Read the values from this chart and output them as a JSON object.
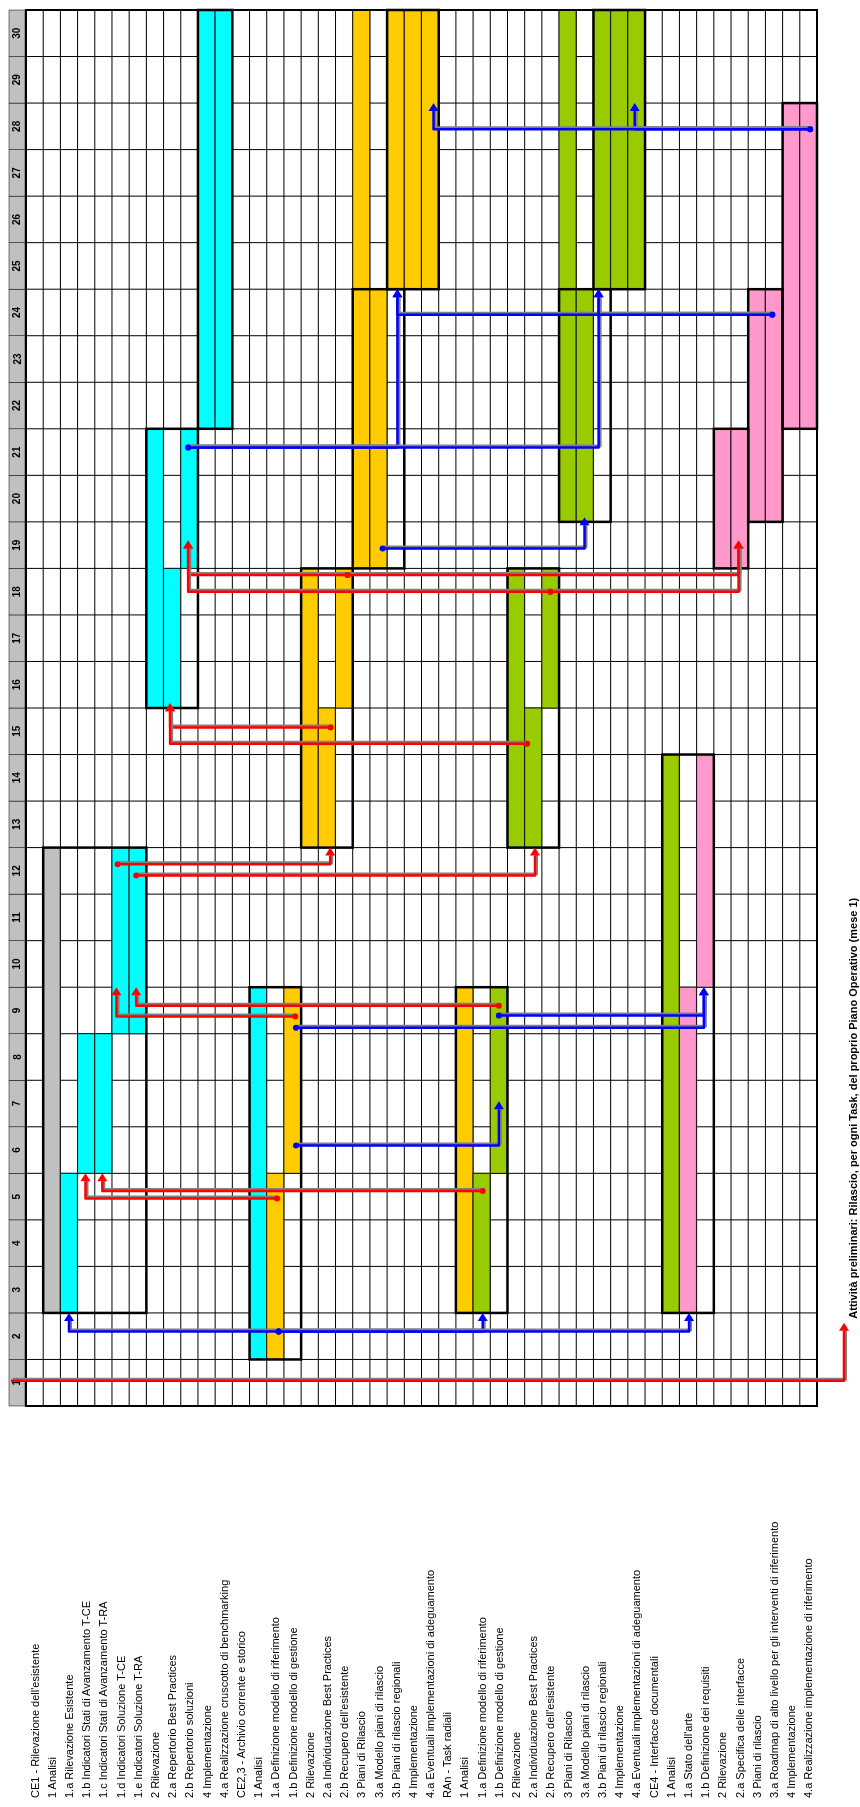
{
  "chart_data": {
    "type": "bar",
    "categories": [
      "CE1 - Rilevazione dell'esistente",
      "1 Analisi",
      "1.a Rilevazione Esistente",
      "1.b Indicatori Stati di Avanzamento T-CE",
      "1.c Indicatori Stati di Avanzamento T-RA",
      "1.d Indicatori Soluzione T-CE",
      "1.e Indicatori Soluzione T-RA",
      "2 Rilevazione",
      "2.a Repertorio Best Practices",
      "2.b Repertorio soluzioni",
      "4 Implementazione",
      "4.a Realizzazione cruscotto di benchmarking",
      "CE2,3 - Archivio corrente e storico",
      "1 Analisi",
      "1.a Definizione modello di riferimento",
      "1.b Definizione modello di gestione",
      "2 Rilevazione",
      "2.a Individuazione Best Practices",
      "2.b Recupero dell'esistente",
      "3 Piani di Rilascio",
      "3.a Modello piani di rilascio",
      "3.b Piani di rilascio regionali",
      "4 Implementazione",
      "4.a Eventuali implementazioni di adeguamento",
      "RAn - Task radiali",
      "1 Analisi",
      "1.a Definizione modello di riferimento",
      "1.b Definizione modello di gestione",
      "2 Rilevazione",
      "2.a Individuazione Best Practices",
      "2.b Recupero dell'esistente",
      "3 Piani di Rilascio",
      "3.a Modello piani di rilascio",
      "3.b Piani di rilascio regionali",
      "4 Implementazione",
      "4.a Eventuali implementazioni di adeguamento",
      "CE4 - Interfacce documentali",
      "1 Analisi",
      "1.a Stato dell'arte",
      "1.b Definizione dei requisiti",
      "2 Rilevazione",
      "2.a Specifica delle interfacce",
      "3 Piani di rilascio",
      "3.a Roadmap di alto livello per gli interventi di riferimento",
      "4 Implementazione",
      "4.a Realizzazione implementazione di riferimento"
    ],
    "values": [
      null,
      10,
      3,
      3,
      3,
      4,
      4,
      6,
      3,
      3,
      9,
      9,
      null,
      8,
      4,
      4,
      6,
      3,
      3,
      12,
      6,
      6,
      6,
      6,
      null,
      7,
      3,
      4,
      6,
      3,
      3,
      11,
      5,
      6,
      6,
      6,
      null,
      12,
      7,
      5,
      3,
      3,
      5,
      5,
      7,
      7
    ],
    "base": [
      null,
      2.5,
      2.5,
      5.5,
      5.5,
      8.5,
      8.5,
      15.5,
      15.5,
      18.5,
      21.5,
      21.5,
      null,
      1.5,
      1.5,
      5.5,
      12.5,
      12.5,
      15.5,
      18.5,
      18.5,
      24.5,
      24.5,
      24.5,
      null,
      2.5,
      2.5,
      5.5,
      12.5,
      12.5,
      15.5,
      19.5,
      19.5,
      24.5,
      24.5,
      24.5,
      null,
      2.5,
      2.5,
      9.5,
      18.5,
      18.5,
      19.5,
      19.5,
      21.5,
      21.5
    ],
    "colors": [
      null,
      "#c0c0c0",
      "#00ffff",
      "#00ffff",
      "#00ffff",
      "#00ffff",
      "#00ffff",
      "#00ffff",
      "#00ffff",
      "#00ffff",
      "#00ffff",
      "#00ffff",
      null,
      "#00ffff",
      "#ffcc00",
      "#ffcc00",
      "#ffcc00",
      "#ffcc00",
      "#ffcc00",
      "#ffcc00",
      "#ffcc00",
      "#ffcc00",
      "#ffcc00",
      "#ffcc00",
      null,
      "#ffcc00",
      "#99cc00",
      "#99cc00",
      "#99cc00",
      "#99cc00",
      "#99cc00",
      "#99cc00",
      "#99cc00",
      "#99cc00",
      "#99cc00",
      "#99cc00",
      null,
      "#99cc00",
      "#ff99cc",
      "#ff99cc",
      "#ff99cc",
      "#ff99cc",
      "#ff99cc",
      "#ff99cc",
      "#ff99cc",
      "#ff99cc"
    ],
    "ylim": [
      0.5,
      30.5
    ],
    "yticks": [
      1,
      2,
      3,
      4,
      5,
      6,
      7,
      8,
      9,
      10,
      11,
      12,
      13,
      14,
      15,
      16,
      17,
      18,
      19,
      20,
      21,
      22,
      23,
      24,
      25,
      26,
      27,
      28,
      29,
      30
    ],
    "grid": true,
    "annotations": [
      "Attività preliminari: Rilascio, per ogni Task, del proprio Piano Operativo (mese 1)"
    ]
  }
}
